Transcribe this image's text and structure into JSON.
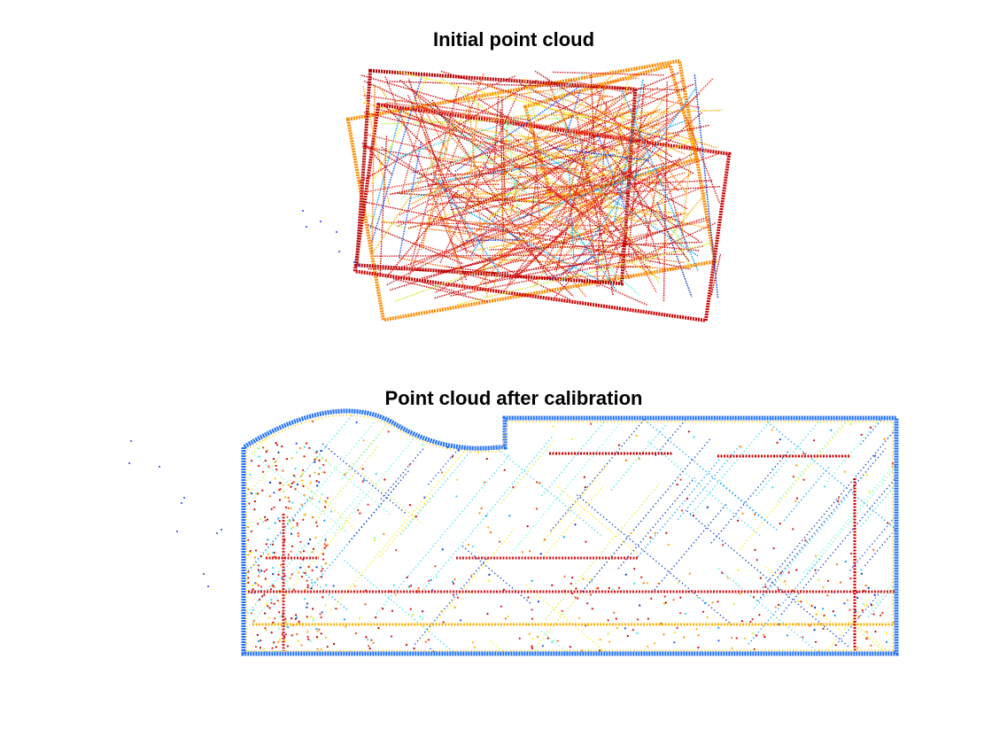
{
  "figure": {
    "panels": [
      {
        "title": "Initial point cloud"
      },
      {
        "title": "Point cloud after calibration"
      }
    ]
  }
}
